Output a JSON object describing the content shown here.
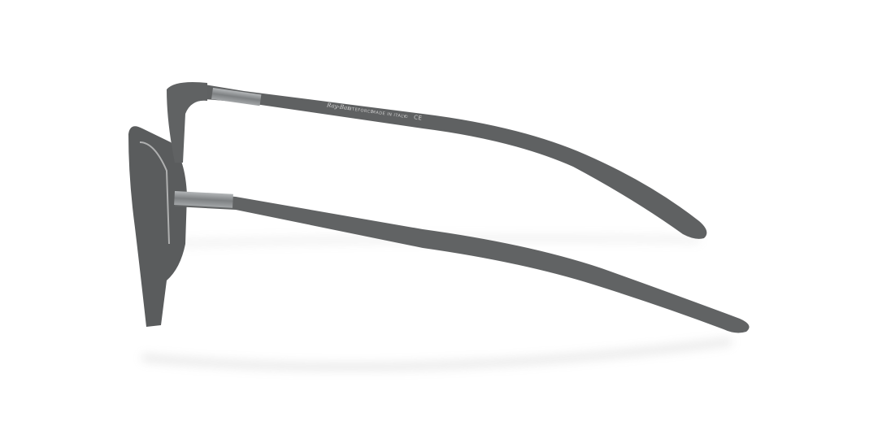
{
  "product": {
    "brand_logo": "Ray-Ban",
    "model_line": "LITEFORCE",
    "origin": "MADE IN ITALY",
    "marks": [
      "©",
      "CE"
    ]
  },
  "colors": {
    "frame": "#5f6162",
    "frame_dark": "#4a4c4d",
    "hinge_metal": "#8e9193",
    "background": "#ffffff"
  }
}
